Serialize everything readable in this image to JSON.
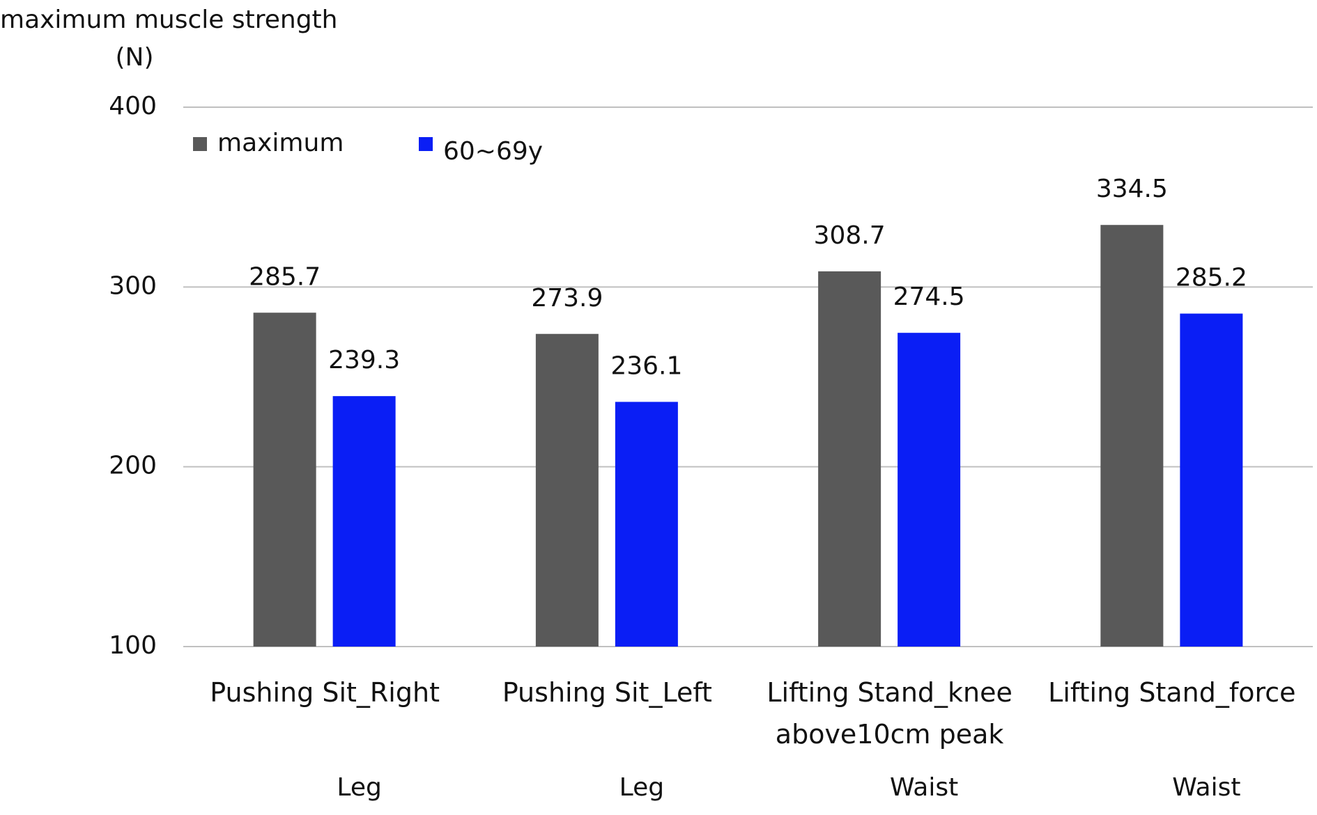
{
  "chart_data": {
    "type": "bar",
    "y_label": "maximum muscle strength",
    "y_unit": "(N)",
    "categories": [
      "Pushing Sit_Right",
      "Pushing Sit_Left",
      "Lifting Stand_knee above10cm peak",
      "Lifting Stand_force"
    ],
    "groups": [
      "Leg",
      "Leg",
      "Waist",
      "Waist"
    ],
    "series": [
      {
        "name": "maximum",
        "color": "#595959",
        "values": [
          285.7,
          273.9,
          308.7,
          334.5
        ]
      },
      {
        "name": "60~69y",
        "color": "#0a1ef5",
        "values": [
          239.3,
          236.1,
          274.5,
          285.2
        ]
      }
    ],
    "ylim": [
      100,
      400
    ],
    "yticks": [
      100,
      200,
      300,
      400
    ],
    "grid": true,
    "legend": "top-left"
  }
}
